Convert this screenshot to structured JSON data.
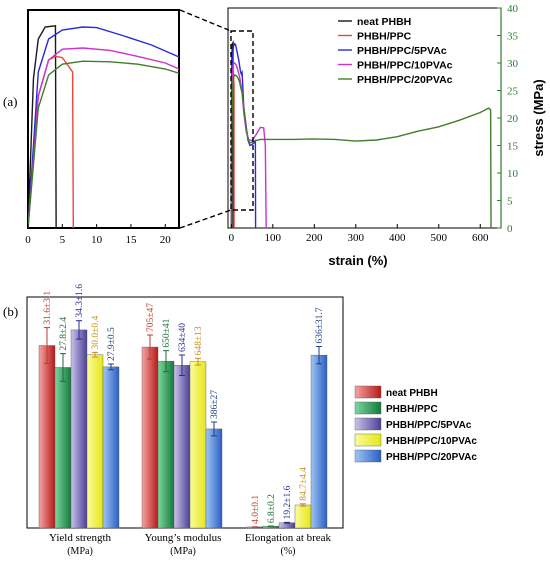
{
  "panel_labels": {
    "a": "(a)",
    "b": "(b)"
  },
  "colors": {
    "neat PHBH": "#1a1a1a",
    "PHBH/PPC": "#e8473b",
    "PHBH/PPC/5PVAc": "#2a2ad6",
    "PHBH/PPC/10PVAc": "#cc33cc",
    "PHBH/PPC/20PVAc": "#3f7f2a",
    "accent_green": "#2e7d32"
  },
  "chart_data": [
    {
      "type": "line",
      "title": "",
      "xlabel": "strain (%)",
      "ylabel": "stress (MPa)",
      "xlim": [
        -8,
        650
      ],
      "ylim": [
        0,
        40
      ],
      "xticks": [
        "0",
        "100",
        "200",
        "300",
        "400",
        "500",
        "600"
      ],
      "yticks": [
        "0",
        "5",
        "10",
        "15",
        "20",
        "25",
        "30",
        "35",
        "40"
      ],
      "legend_position": "top-right",
      "series": [
        {
          "name": "neat PHBH",
          "points": [
            [
              0,
              0
            ],
            [
              0.8,
              25
            ],
            [
              1.5,
              31.5
            ],
            [
              2.5,
              33.5
            ],
            [
              4,
              33.7
            ],
            [
              4.1,
              0
            ]
          ]
        },
        {
          "name": "PHBH/PPC",
          "points": [
            [
              0,
              0
            ],
            [
              1.5,
              22
            ],
            [
              3,
              28
            ],
            [
              4,
              28.6
            ],
            [
              5,
              28.4
            ],
            [
              6.5,
              26
            ],
            [
              6.6,
              0
            ]
          ]
        },
        {
          "name": "PHBH/PPC/5PVAc",
          "points": [
            [
              0,
              0
            ],
            [
              1.5,
              26
            ],
            [
              3,
              31.5
            ],
            [
              5,
              33
            ],
            [
              8,
              33.5
            ],
            [
              10,
              33.4
            ],
            [
              14,
              32
            ],
            [
              18,
              30.5
            ],
            [
              20,
              29.5
            ],
            [
              22,
              28.5
            ],
            [
              24,
              28
            ],
            [
              26,
              28.3
            ],
            [
              30,
              22
            ],
            [
              40,
              16
            ],
            [
              45,
              15
            ],
            [
              50,
              15.2
            ],
            [
              55,
              15.5
            ],
            [
              58,
              15.8
            ],
            [
              58.5,
              0
            ]
          ]
        },
        {
          "name": "PHBH/PPC/10PVAc",
          "points": [
            [
              0,
              0
            ],
            [
              1.5,
              22
            ],
            [
              3,
              28
            ],
            [
              5,
              29.8
            ],
            [
              8,
              30
            ],
            [
              12,
              29.6
            ],
            [
              16,
              28.6
            ],
            [
              20,
              27.5
            ],
            [
              22,
              26.5
            ],
            [
              26,
              24.8
            ],
            [
              30,
              21
            ],
            [
              36,
              17.5
            ],
            [
              42,
              16
            ],
            [
              50,
              15.9
            ],
            [
              60,
              17
            ],
            [
              70,
              18.3
            ],
            [
              78,
              18.2
            ],
            [
              82,
              15
            ],
            [
              84,
              0
            ]
          ]
        },
        {
          "name": "PHBH/PPC/20PVAc",
          "points": [
            [
              0,
              0
            ],
            [
              1.5,
              20
            ],
            [
              3,
              25.5
            ],
            [
              5,
              27.3
            ],
            [
              8,
              27.8
            ],
            [
              12,
              27.7
            ],
            [
              16,
              27.3
            ],
            [
              20,
              26.5
            ],
            [
              22,
              25.8
            ],
            [
              26,
              24.5
            ],
            [
              30,
              22
            ],
            [
              36,
              18
            ],
            [
              42,
              15.8
            ],
            [
              45,
              15.5
            ],
            [
              50,
              15.6
            ],
            [
              55,
              15.8
            ],
            [
              70,
              16.1
            ],
            [
              100,
              16.1
            ],
            [
              150,
              16.1
            ],
            [
              200,
              16.2
            ],
            [
              250,
              16.1
            ],
            [
              300,
              15.8
            ],
            [
              350,
              16
            ],
            [
              400,
              16.6
            ],
            [
              450,
              17.6
            ],
            [
              500,
              18.4
            ],
            [
              550,
              19.6
            ],
            [
              600,
              21
            ],
            [
              620,
              21.8
            ],
            [
              625,
              21.5
            ],
            [
              626,
              0
            ]
          ]
        }
      ]
    },
    {
      "type": "line",
      "title": "",
      "xlim": [
        0,
        22
      ],
      "ylim": [
        0,
        35
      ],
      "xticks": [
        "0",
        "5",
        "10",
        "15",
        "20"
      ],
      "series_ref": "zoomed view of panel (a) curves for strain 0-22 %",
      "series": [
        {
          "name": "neat PHBH",
          "points": [
            [
              0,
              0
            ],
            [
              0.8,
              25
            ],
            [
              1.5,
              31.5
            ],
            [
              2.5,
              33.5
            ],
            [
              4,
              33.7
            ],
            [
              4.1,
              0
            ]
          ]
        },
        {
          "name": "PHBH/PPC",
          "points": [
            [
              0,
              0
            ],
            [
              1.5,
              22
            ],
            [
              3,
              28
            ],
            [
              4,
              28.6
            ],
            [
              5,
              28.4
            ],
            [
              6.5,
              26
            ],
            [
              6.6,
              0
            ]
          ]
        },
        {
          "name": "PHBH/PPC/5PVAc",
          "points": [
            [
              0,
              0
            ],
            [
              1.5,
              26
            ],
            [
              3,
              31.5
            ],
            [
              5,
              33
            ],
            [
              8,
              33.5
            ],
            [
              10,
              33.4
            ],
            [
              14,
              32
            ],
            [
              18,
              30.5
            ],
            [
              20,
              29.5
            ],
            [
              22,
              28.5
            ]
          ]
        },
        {
          "name": "PHBH/PPC/10PVAc",
          "points": [
            [
              0,
              0
            ],
            [
              1.5,
              22
            ],
            [
              3,
              28
            ],
            [
              5,
              29.8
            ],
            [
              8,
              30
            ],
            [
              12,
              29.6
            ],
            [
              16,
              28.6
            ],
            [
              20,
              27.5
            ],
            [
              22,
              26.5
            ]
          ]
        },
        {
          "name": "PHBH/PPC/20PVAc",
          "points": [
            [
              0,
              0
            ],
            [
              1.5,
              20
            ],
            [
              3,
              25.5
            ],
            [
              5,
              27.3
            ],
            [
              8,
              27.8
            ],
            [
              12,
              27.7
            ],
            [
              16,
              27.3
            ],
            [
              20,
              26.5
            ],
            [
              22,
              25.8
            ]
          ]
        }
      ]
    },
    {
      "type": "bar",
      "title": "",
      "categories": [
        "Yield strength\n(MPa)",
        "Young’s modulus\n(MPa)",
        "Elongation at break\n(%)"
      ],
      "legend_position": "right",
      "series": [
        {
          "name": "neat PHBH",
          "values": [
            31.6,
            705,
            4.0
          ],
          "errors": [
            3.1,
            47,
            0.1
          ],
          "labels": [
            "31.6±3.1",
            "705±47",
            "4.0±0.1"
          ]
        },
        {
          "name": "PHBH/PPC",
          "values": [
            27.8,
            650,
            6.8
          ],
          "errors": [
            2.4,
            41,
            0.2
          ],
          "labels": [
            "27.8±2.4",
            "650±41",
            "6.8±0.2"
          ]
        },
        {
          "name": "PHBH/PPC/5PVAc",
          "values": [
            34.3,
            634,
            19.2
          ],
          "errors": [
            1.6,
            40,
            1.6
          ],
          "labels": [
            "34.3±1.6",
            "634±40",
            "19.2±1.6"
          ]
        },
        {
          "name": "PHBH/PPC/10PVAc",
          "values": [
            30.0,
            648,
            84.7
          ],
          "errors": [
            0.4,
            13,
            4.4
          ],
          "labels": [
            "30.0±0.4",
            "648±13",
            "84.7±4.4"
          ]
        },
        {
          "name": "PHBH/PPC/20PVAc",
          "values": [
            27.9,
            386,
            636
          ],
          "errors": [
            0.5,
            27,
            31.7
          ],
          "labels": [
            "27.9±0.5",
            "386±27",
            "636±31.7"
          ]
        }
      ],
      "group_maxima": [
        40,
        900,
        850
      ],
      "label_colors": [
        "#c0392b",
        "#1f6b3a",
        "#2a2a9a",
        "#c8901e",
        "#1f3f8a"
      ],
      "bar_gradients": [
        [
          "#f7a3a3",
          "#b51a1a"
        ],
        [
          "#7fd6a0",
          "#137a3c"
        ],
        [
          "#cbc3ea",
          "#4b3f96"
        ],
        [
          "#fbfb9c",
          "#e6e61a"
        ],
        [
          "#9ec6f5",
          "#2c5fc4"
        ]
      ]
    }
  ]
}
